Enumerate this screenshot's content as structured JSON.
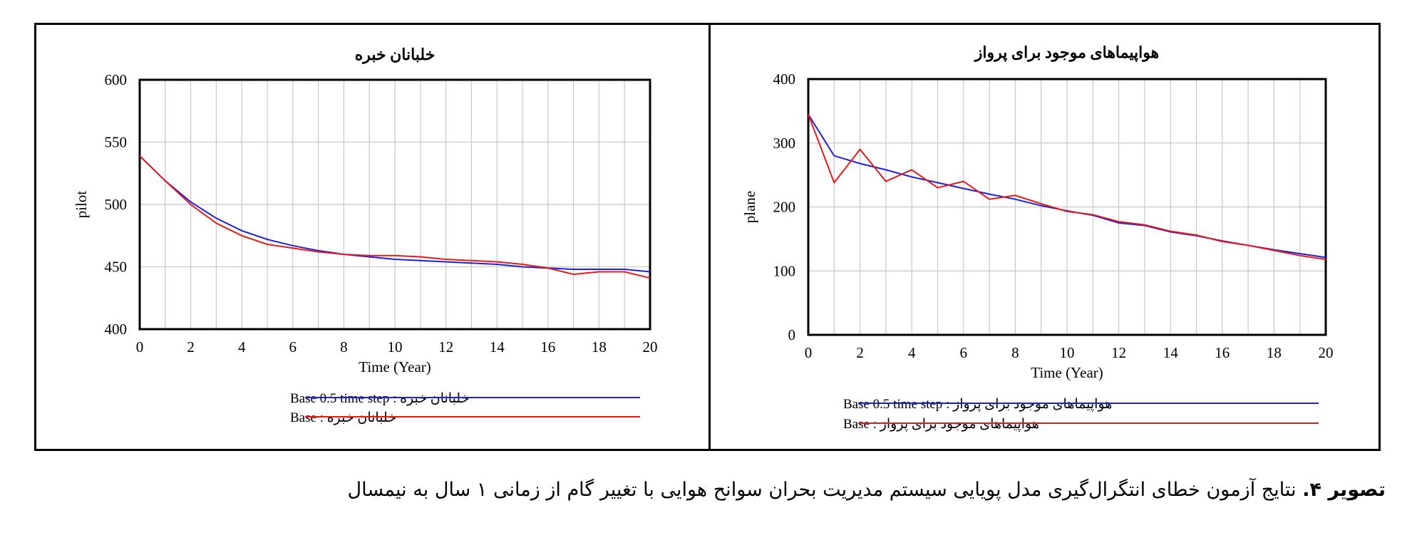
{
  "chart_data": [
    {
      "type": "line",
      "title": "خلبانان خبره",
      "xlabel": "Time (Year)",
      "ylabel": "pilot",
      "xlim": [
        0,
        20
      ],
      "ylim": [
        400,
        600
      ],
      "xticks": [
        0,
        2,
        4,
        6,
        8,
        10,
        12,
        14,
        16,
        18,
        20
      ],
      "yticks": [
        400,
        450,
        500,
        550,
        600
      ],
      "grid": true,
      "legend_position": "bottom",
      "series": [
        {
          "name": "خلبانان خبره : Base 0.5 time step",
          "color": "#1f1fd6",
          "x": [
            0,
            1,
            2,
            3,
            4,
            5,
            6,
            7,
            8,
            9,
            10,
            11,
            12,
            13,
            14,
            15,
            16,
            17,
            18,
            19,
            20
          ],
          "y": [
            539,
            519,
            502,
            489,
            479,
            472,
            467,
            463,
            460,
            458,
            456,
            455,
            454,
            453,
            452,
            450,
            449,
            448,
            448,
            448,
            446
          ]
        },
        {
          "name": "خلبانان خبره : Base",
          "color": "#e31a1c",
          "x": [
            0,
            1,
            2,
            3,
            4,
            5,
            6,
            7,
            8,
            9,
            10,
            11,
            12,
            13,
            14,
            15,
            16,
            17,
            18,
            19,
            20
          ],
          "y": [
            539,
            519,
            500,
            485,
            475,
            468,
            465,
            462,
            460,
            459,
            459,
            458,
            456,
            455,
            454,
            452,
            449,
            444,
            446,
            446,
            441
          ]
        }
      ]
    },
    {
      "type": "line",
      "title": "هواپیماهای موجود برای پرواز",
      "xlabel": "Time (Year)",
      "ylabel": "plane",
      "xlim": [
        0,
        20
      ],
      "ylim": [
        0,
        400
      ],
      "xticks": [
        0,
        2,
        4,
        6,
        8,
        10,
        12,
        14,
        16,
        18,
        20
      ],
      "yticks": [
        0,
        100,
        200,
        300,
        400
      ],
      "grid": true,
      "legend_position": "bottom",
      "series": [
        {
          "name": "هواپیماهای موجود برای پرواز : Base 0.5 time step",
          "color": "#1f1fd6",
          "x": [
            0,
            1,
            2,
            3,
            4,
            5,
            6,
            7,
            8,
            9,
            10,
            11,
            12,
            13,
            14,
            15,
            16,
            17,
            18,
            19,
            20
          ],
          "y": [
            345,
            280,
            268,
            258,
            247,
            238,
            229,
            220,
            212,
            202,
            194,
            187,
            175,
            171,
            161,
            155,
            147,
            140,
            133,
            127,
            121
          ]
        },
        {
          "name": "هواپیماهای موجود برای پرواز : Base",
          "color": "#e31a1c",
          "x": [
            0,
            1,
            2,
            3,
            4,
            5,
            6,
            7,
            8,
            9,
            10,
            11,
            12,
            13,
            14,
            15,
            16,
            17,
            18,
            19,
            20
          ],
          "y": [
            345,
            238,
            290,
            240,
            258,
            230,
            240,
            212,
            218,
            205,
            193,
            188,
            177,
            172,
            162,
            156,
            146,
            140,
            132,
            124,
            118
          ]
        }
      ]
    }
  ],
  "caption": {
    "label": "تصویر ۴.",
    "text": "نتایج آزمون خطای انتگرال‌گیری مدل پویایی سیستم مدیریت بحران سوانح هوایی با تغییر گام از زمانی ۱ سال به نیمسال"
  }
}
